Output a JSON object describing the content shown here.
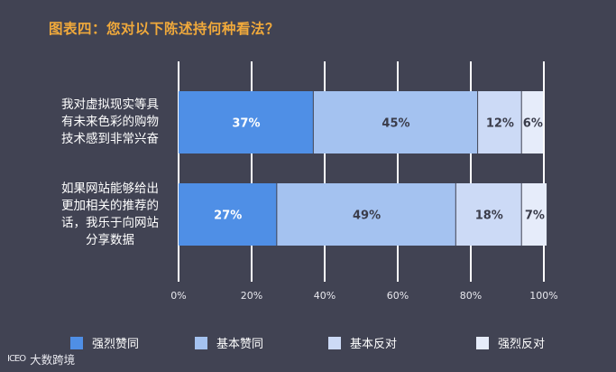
{
  "chart_data": {
    "type": "bar",
    "orientation": "horizontal",
    "stacked": true,
    "title": "图表四：您对以下陈述持何种看法？",
    "categories": [
      "我对虚拟现实等具有未来色彩的购物技术感到非常兴奋",
      "如果网站能够给出更加相关的推荐的话，我乐于向网站分享数据"
    ],
    "category_lines": [
      [
        "我对虚拟现实等具",
        "有未来色彩的购物",
        "技术感到非常兴奋"
      ],
      [
        "如果网站能够给出",
        "更加相关的推荐的",
        "话，我乐于向网站",
        "分享数据"
      ]
    ],
    "series": [
      {
        "name": "强烈赞同",
        "color": "#4F8FE6",
        "values": [
          37,
          27
        ],
        "labels": [
          "37%",
          "27%"
        ]
      },
      {
        "name": "基本赞同",
        "color": "#A4C2F0",
        "values": [
          45,
          49
        ],
        "labels": [
          "45%",
          "49%"
        ]
      },
      {
        "name": "基本反对",
        "color": "#CCDAF6",
        "values": [
          12,
          18
        ],
        "labels": [
          "12%",
          "18%"
        ]
      },
      {
        "name": "强烈反对",
        "color": "#E6ECFA",
        "values": [
          6,
          7
        ],
        "labels": [
          "6%",
          "7%"
        ]
      }
    ],
    "xlim": [
      0,
      100
    ],
    "xticks": [
      "0%",
      "20%",
      "40%",
      "60%",
      "80%",
      "100%"
    ],
    "grid": true,
    "legend_position": "bottom"
  },
  "watermark": {
    "logo": "ICEO",
    "text": "大数跨境"
  }
}
